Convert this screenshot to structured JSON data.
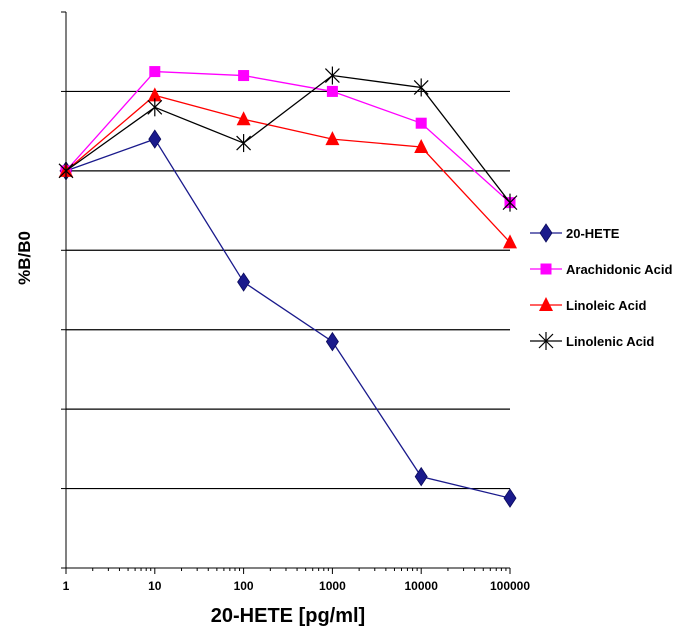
{
  "chart_data": {
    "type": "line",
    "xscale": "log",
    "xlabel": "20-HETE [pg/ml]",
    "ylabel": "%B/B0",
    "xlim": [
      1,
      100000
    ],
    "ylim": [
      0,
      7
    ],
    "x_tick_labels": [
      "1",
      "10",
      "100",
      "1000",
      "10000",
      "100000"
    ],
    "x": [
      1,
      10,
      100,
      1000,
      10000,
      100000
    ],
    "grid": "horizontal",
    "legend_position": "right",
    "series": [
      {
        "name": "20-HETE",
        "color": "#1a1a8c",
        "marker": "diamond",
        "values": [
          5.0,
          5.4,
          3.6,
          2.85,
          1.15,
          0.88
        ]
      },
      {
        "name": "Arachidonic Acid",
        "color": "#ff00ff",
        "marker": "square",
        "values": [
          5.0,
          6.25,
          6.2,
          6.0,
          5.6,
          4.6
        ]
      },
      {
        "name": "Linoleic Acid",
        "color": "#ff0000",
        "marker": "triangle",
        "values": [
          5.0,
          5.95,
          5.65,
          5.4,
          5.3,
          4.1
        ]
      },
      {
        "name": "Linolenic Acid",
        "color": "#000000",
        "marker": "x",
        "values": [
          5.0,
          5.8,
          5.35,
          6.2,
          6.05,
          4.6
        ]
      }
    ]
  }
}
